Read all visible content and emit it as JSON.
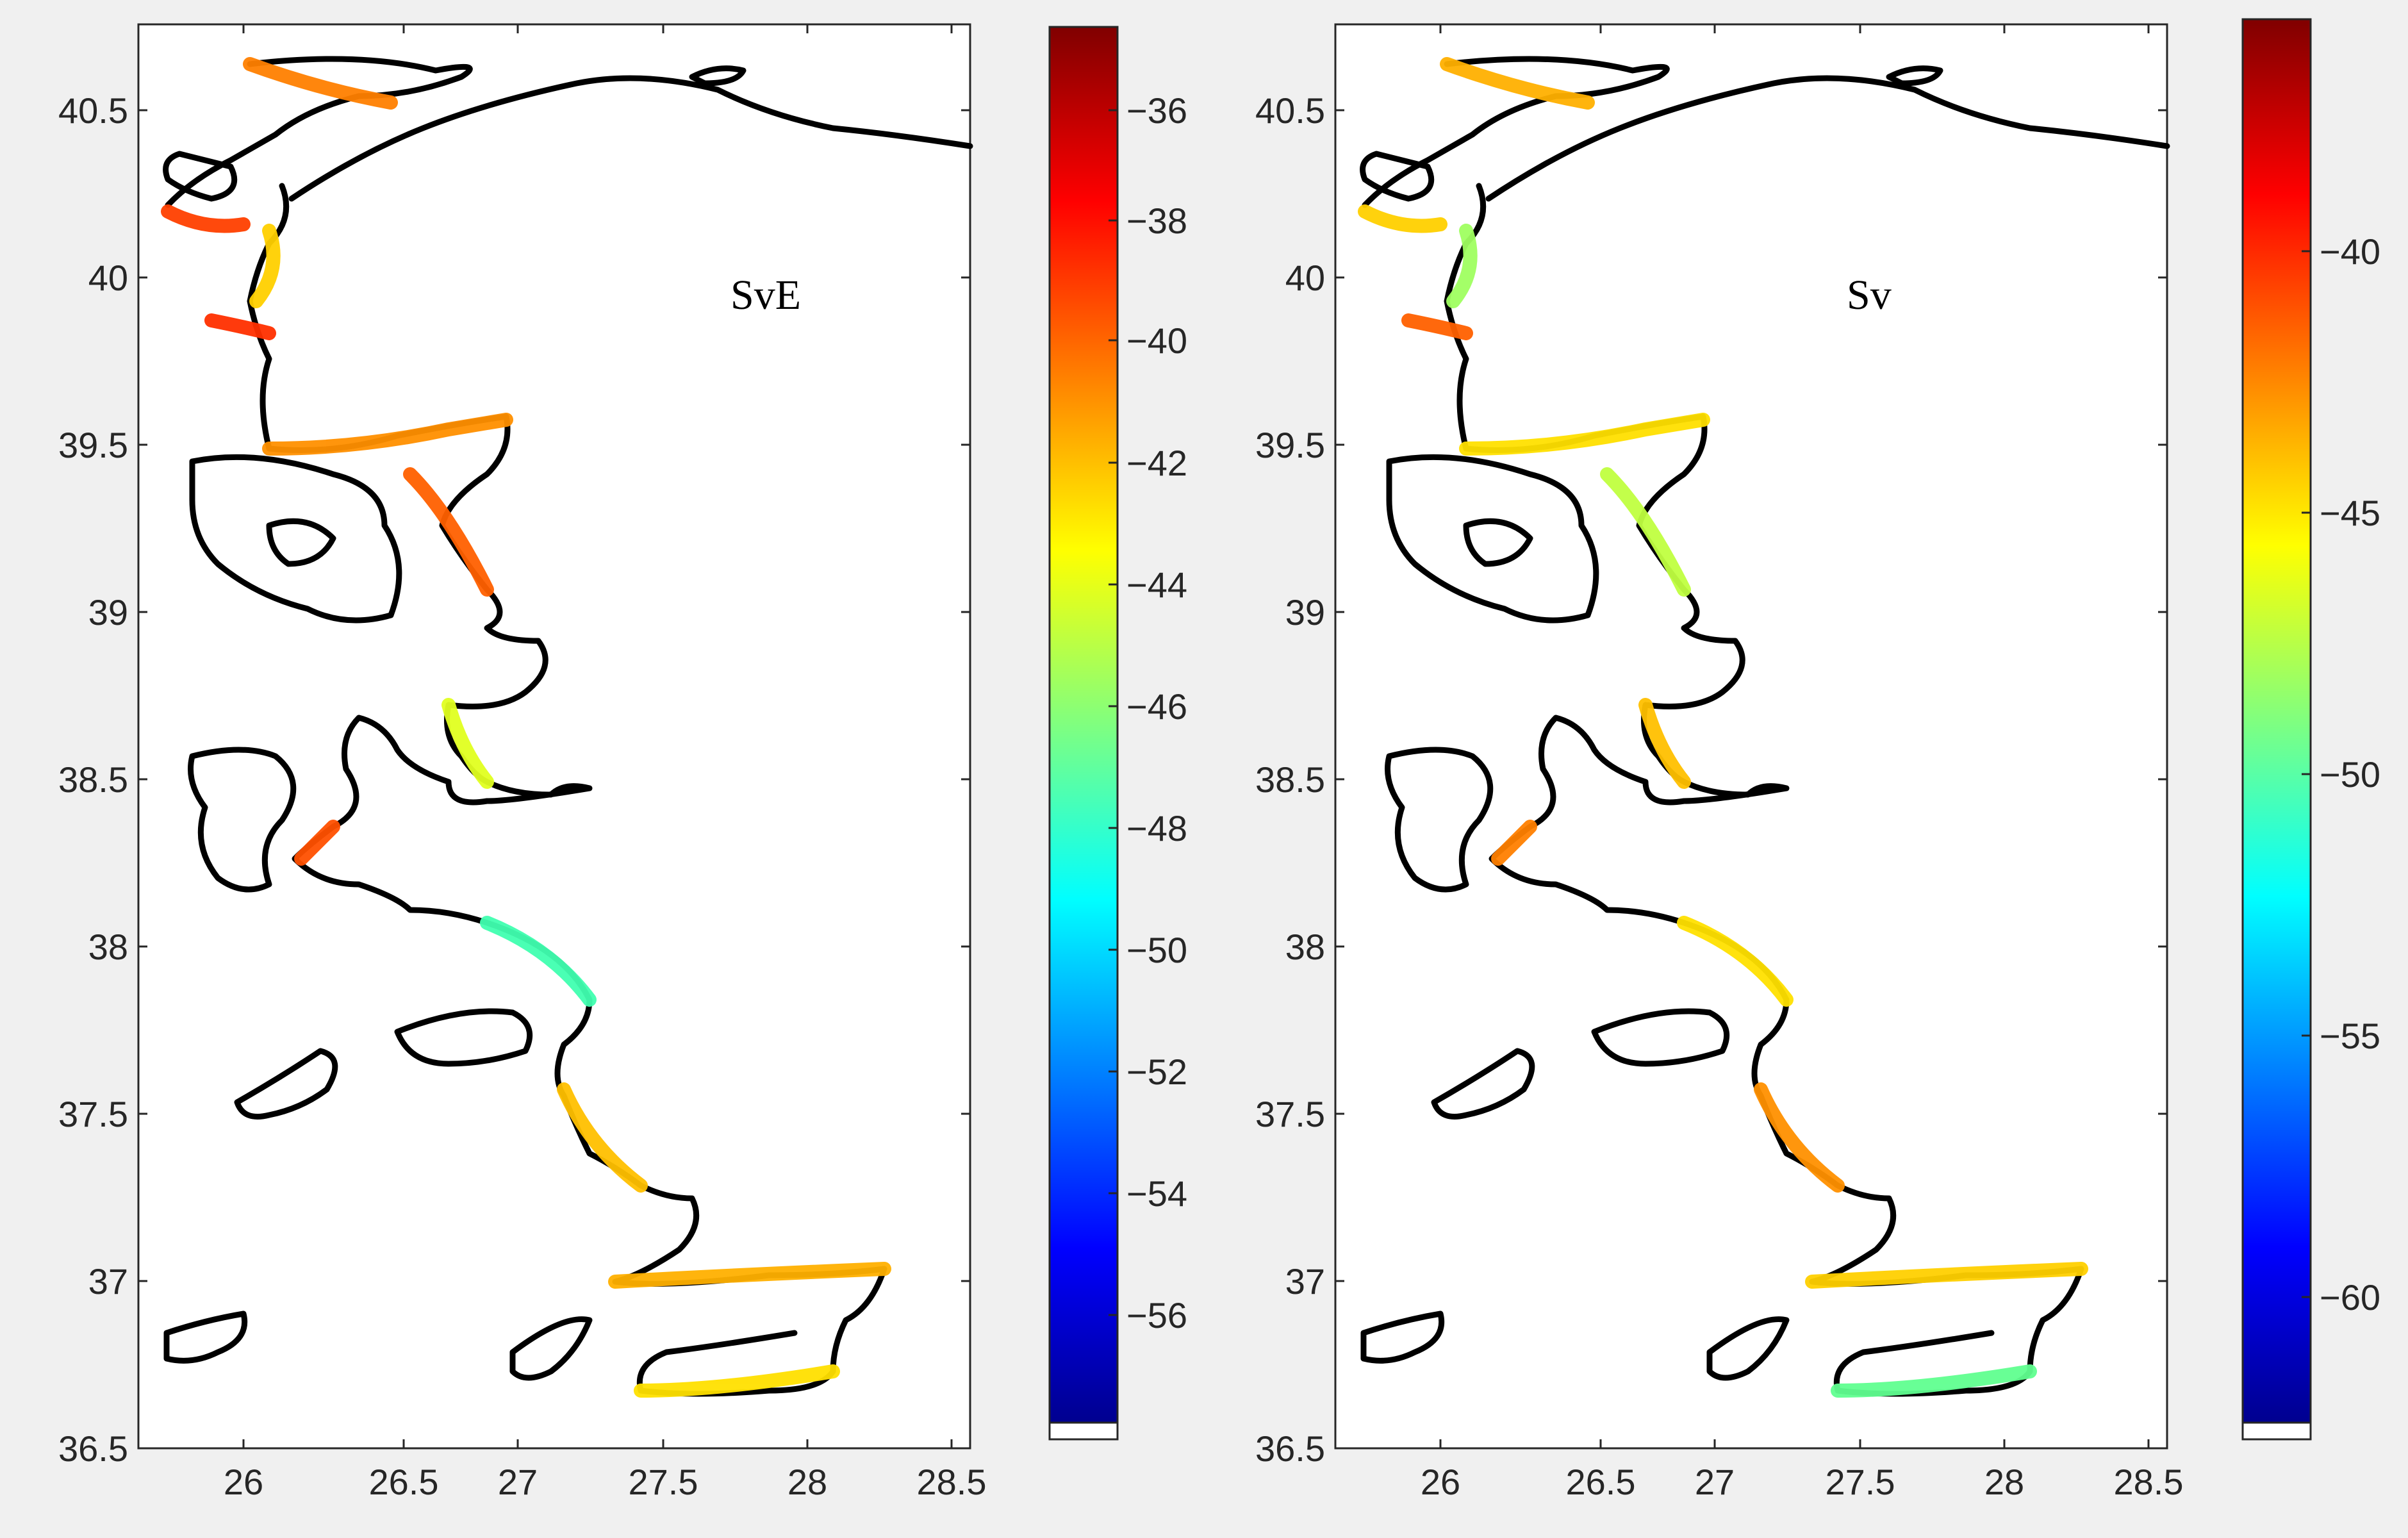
{
  "panels": [
    {
      "id": "left",
      "label": "SvE",
      "xticks": [
        "26",
        "26.5",
        "27",
        "27.5",
        "28",
        "28.5"
      ],
      "yticks": [
        "36.5",
        "37",
        "37.5",
        "38",
        "38.5",
        "39",
        "39.5",
        "40",
        "40.5"
      ],
      "colorbar": {
        "ticks": [
          "-36",
          "-38",
          "-40",
          "-42",
          "-44",
          "-46",
          "-48",
          "-50",
          "-52",
          "-54",
          "-56"
        ]
      }
    },
    {
      "id": "right",
      "label": "Sv",
      "xticks": [
        "26",
        "26.5",
        "27",
        "27.5",
        "28",
        "28.5"
      ],
      "yticks": [
        "36.5",
        "37",
        "37.5",
        "38",
        "38.5",
        "39",
        "39.5",
        "40",
        "40.5"
      ],
      "colorbar": {
        "ticks": [
          "-40",
          "-45",
          "-50",
          "-55",
          "-60"
        ]
      }
    }
  ],
  "colormap": "jet",
  "colors": {
    "coastline": "#000000",
    "background": "#f0f0f0",
    "axes": "#ffffff"
  }
}
